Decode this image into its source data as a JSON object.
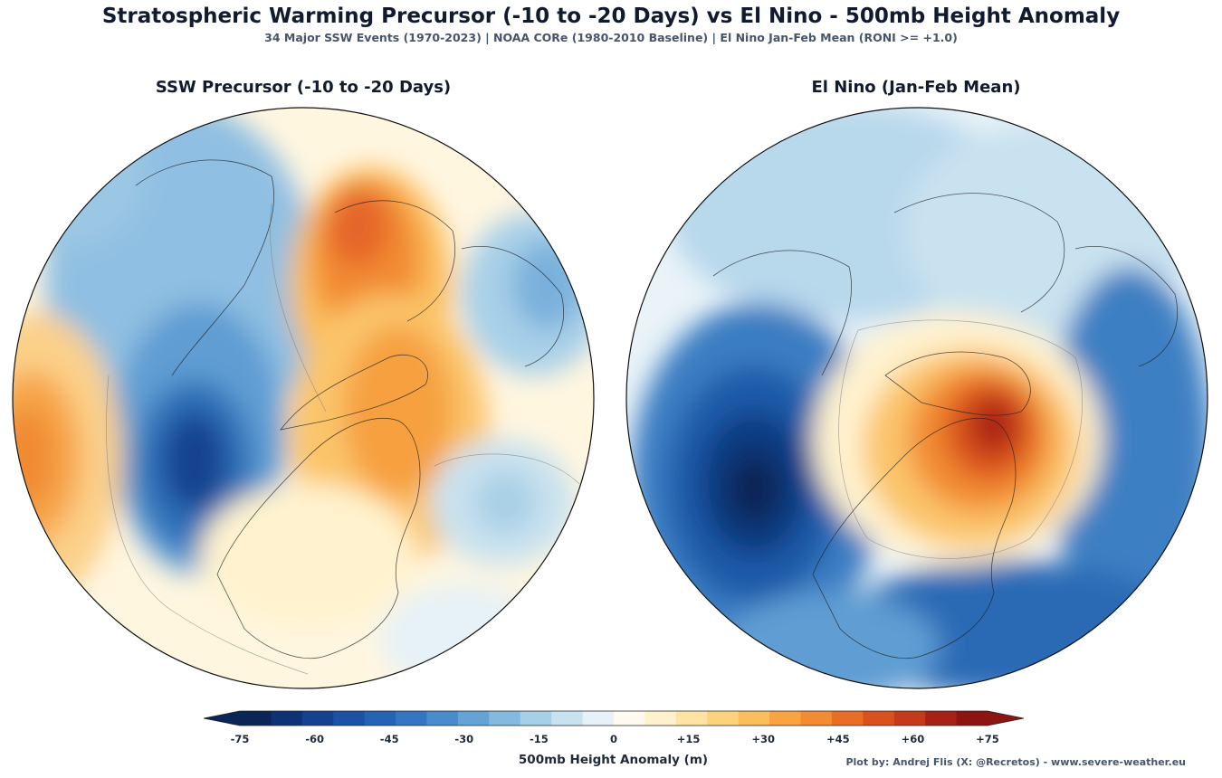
{
  "title": "Stratospheric Warming Precursor (-10 to -20 Days) vs El Nino - 500mb Height Anomaly",
  "subtitle": "34 Major SSW Events (1970-2023)  |  NOAA CORe (1980-2010 Baseline)  |  El Nino Jan-Feb Mean (RONI >= +1.0)",
  "panels": [
    {
      "title": "SSW Precursor (-10 to -20 Days)"
    },
    {
      "title": "El Nino (Jan-Feb Mean)"
    }
  ],
  "colorbar": {
    "label": "500mb Height Anomaly (m)",
    "ticks": [
      "-75",
      "-60",
      "-45",
      "-30",
      "-15",
      "0",
      "+15",
      "+30",
      "+45",
      "+60",
      "+75"
    ],
    "colors": [
      "#0a2656",
      "#0e3375",
      "#14428f",
      "#1b52a5",
      "#2563b4",
      "#3477c0",
      "#4a8ccb",
      "#65a2d6",
      "#84b9e0",
      "#a6cfe8",
      "#c8e2ef",
      "#e6f2f7",
      "#fffaf0",
      "#fff1cc",
      "#ffe3a3",
      "#fdd27d",
      "#fbbe5c",
      "#f8a440",
      "#f28b31",
      "#e86e27",
      "#d9511f",
      "#c43a1a",
      "#a82116",
      "#8c1411"
    ]
  },
  "credit": "Plot by: Andrej Flis (X: @Recretos) - www.severe-weather.eu"
}
